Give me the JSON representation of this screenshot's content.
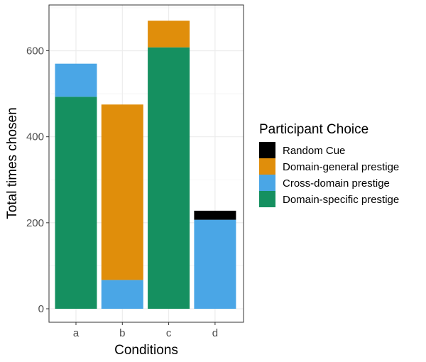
{
  "chart_data": {
    "type": "bar",
    "stacked": true,
    "title": "",
    "xlabel": "Conditions",
    "ylabel": "Total times chosen",
    "categories": [
      "a",
      "b",
      "c",
      "d"
    ],
    "ylim": [
      0,
      700
    ],
    "yticks": [
      0,
      200,
      400,
      600
    ],
    "grid": true,
    "legend_position": "right",
    "legend_title": "Participant Choice",
    "series": [
      {
        "name": "Domain-specific prestige",
        "color": "#159060",
        "values": [
          493,
          0,
          608,
          0
        ]
      },
      {
        "name": "Cross-domain prestige",
        "color": "#4aa6e6",
        "values": [
          77,
          67,
          0,
          207
        ]
      },
      {
        "name": "Domain-general prestige",
        "color": "#e08e0b",
        "values": [
          0,
          408,
          62,
          0
        ]
      },
      {
        "name": "Random Cue",
        "color": "#000000",
        "values": [
          0,
          0,
          0,
          21
        ]
      }
    ],
    "legend_order": [
      "Random Cue",
      "Domain-general prestige",
      "Cross-domain prestige",
      "Domain-specific prestige"
    ]
  }
}
